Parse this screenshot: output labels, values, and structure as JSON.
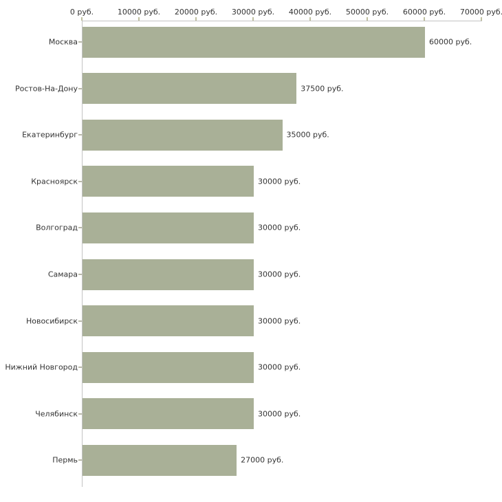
{
  "chart_data": {
    "type": "bar",
    "orientation": "horizontal",
    "title": "",
    "xlabel": "",
    "ylabel": "",
    "unit": "руб.",
    "xlim": [
      0,
      70000
    ],
    "grid": false,
    "legend": false,
    "x_tick_values": [
      0,
      10000,
      20000,
      30000,
      40000,
      50000,
      60000,
      70000
    ],
    "x_tick_labels": [
      "0 руб.",
      "10000 руб.",
      "20000 руб.",
      "30000 руб.",
      "40000 руб.",
      "50000 руб.",
      "60000 руб.",
      "70000 руб."
    ],
    "categories": [
      "Москва",
      "Ростов-На-Дону",
      "Екатеринбург",
      "Красноярск",
      "Волгоград",
      "Самара",
      "Новосибирск",
      "Нижний Новгород",
      "Челябинск",
      "Пермь"
    ],
    "values": [
      60000,
      37500,
      35000,
      30000,
      30000,
      30000,
      30000,
      30000,
      30000,
      27000
    ],
    "value_labels": [
      "60000 руб.",
      "37500 руб.",
      "35000 руб.",
      "30000 руб.",
      "30000 руб.",
      "30000 руб.",
      "30000 руб.",
      "30000 руб.",
      "30000 руб.",
      "27000 руб."
    ],
    "colors": {
      "bar": "#a9b097",
      "axis": "#c2c2c2",
      "tick": "#c0c0a0",
      "text": "#333333",
      "background": "#ffffff"
    }
  }
}
